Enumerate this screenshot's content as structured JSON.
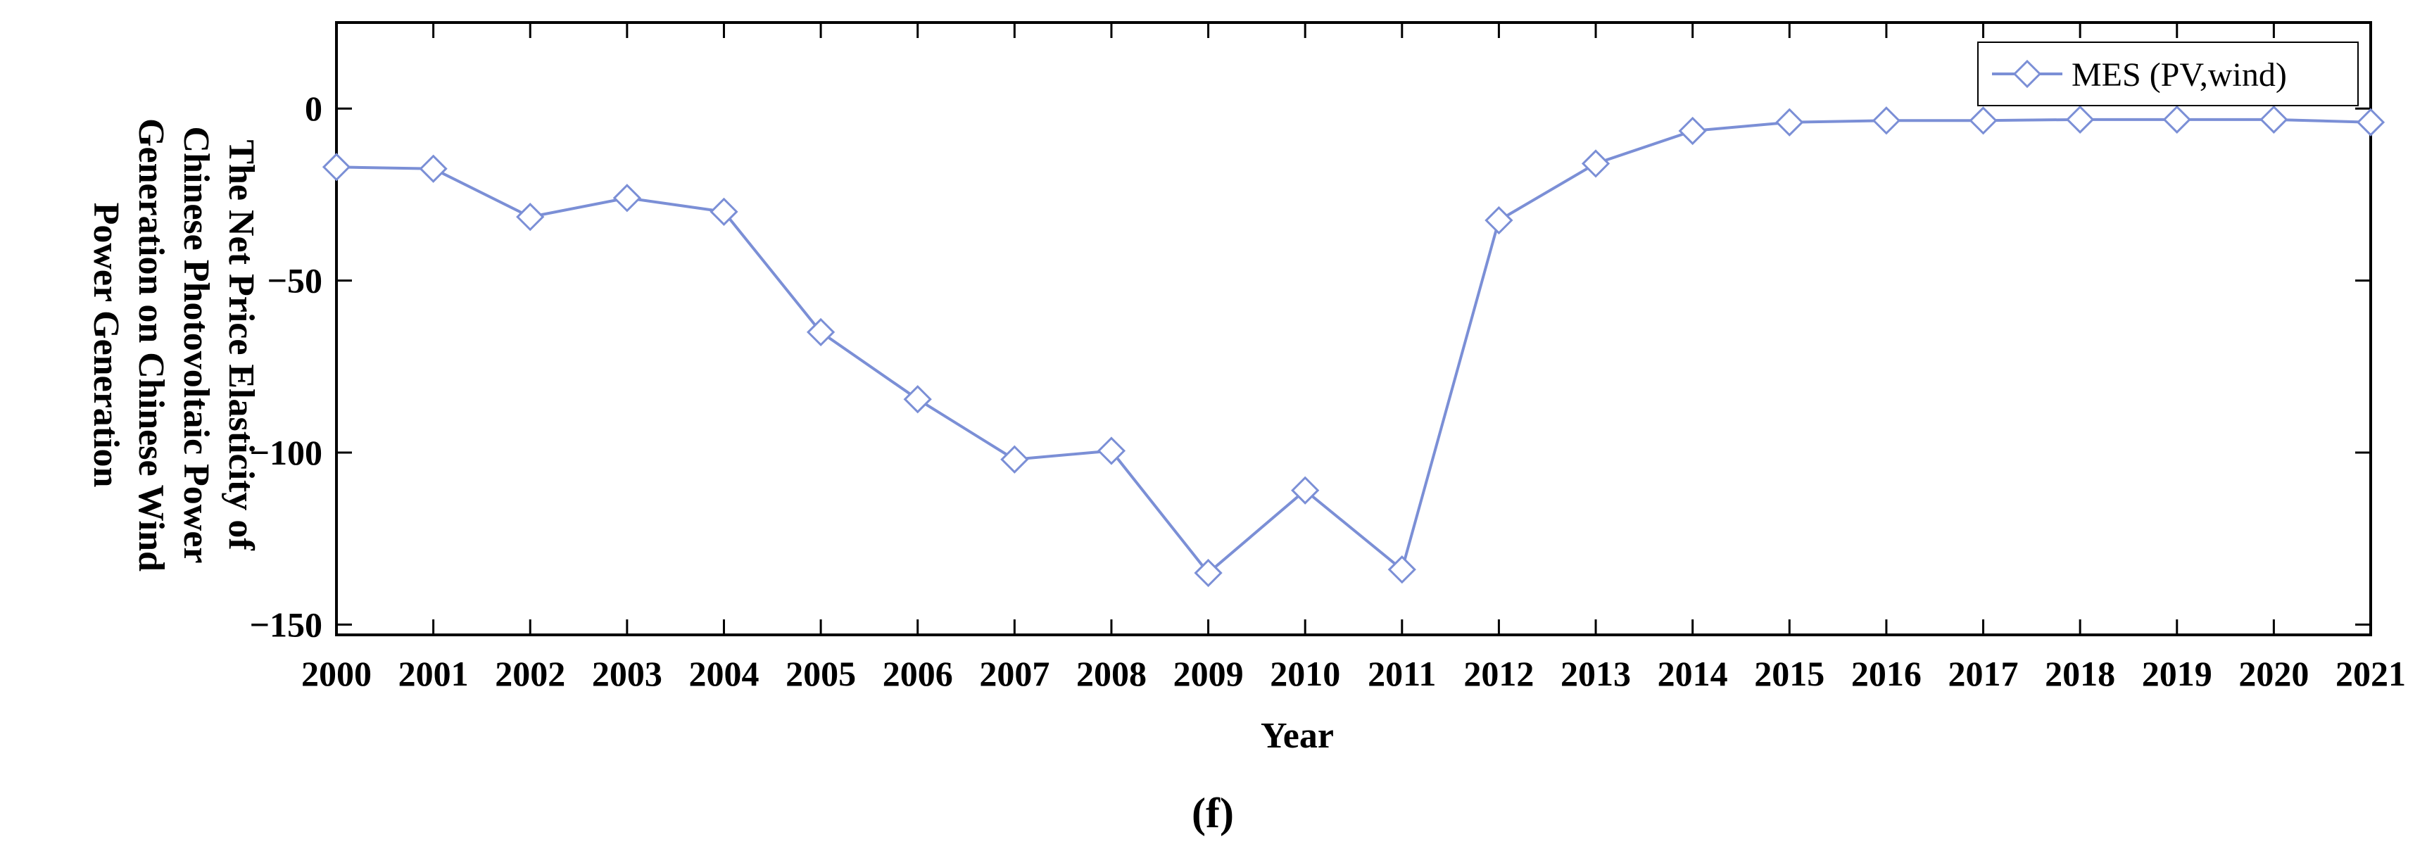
{
  "chart_data": {
    "type": "line",
    "xlabel": "Year",
    "ylabel": "The Net Price Elasticity of Chinese Photovoltaic Power Generation on Chinese Wind Power Generation",
    "ylabel_lines": [
      "The Net Price Elasticity of",
      "Chinese Photovoltaic Power",
      "Generation on Chinese Wind",
      "Power Generation"
    ],
    "caption": "(f)",
    "ylim": [
      -153,
      25
    ],
    "yticks": [
      0,
      -50,
      -100,
      -150
    ],
    "ytick_labels": [
      "0",
      "−50",
      "−100",
      "−150"
    ],
    "x": [
      "2000",
      "2001",
      "2002",
      "2003",
      "2004",
      "2005",
      "2006",
      "2007",
      "2008",
      "2009",
      "2010",
      "2011",
      "2012",
      "2013",
      "2014",
      "2015",
      "2016",
      "2017",
      "2018",
      "2019",
      "2020",
      "2021"
    ],
    "series": [
      {
        "name": "MES (PV,wind)",
        "color": "#7b8fd6",
        "marker": "diamond",
        "values": [
          -17,
          -17.5,
          -31.5,
          -26,
          -30,
          -65,
          -84.5,
          -102,
          -99.5,
          -135,
          -111,
          -134,
          -32.5,
          -16,
          -6.5,
          -4,
          -3.5,
          -3.5,
          -3.2,
          -3.2,
          -3.2,
          -4
        ]
      }
    ],
    "legend_position": "top-right",
    "grid": false
  }
}
